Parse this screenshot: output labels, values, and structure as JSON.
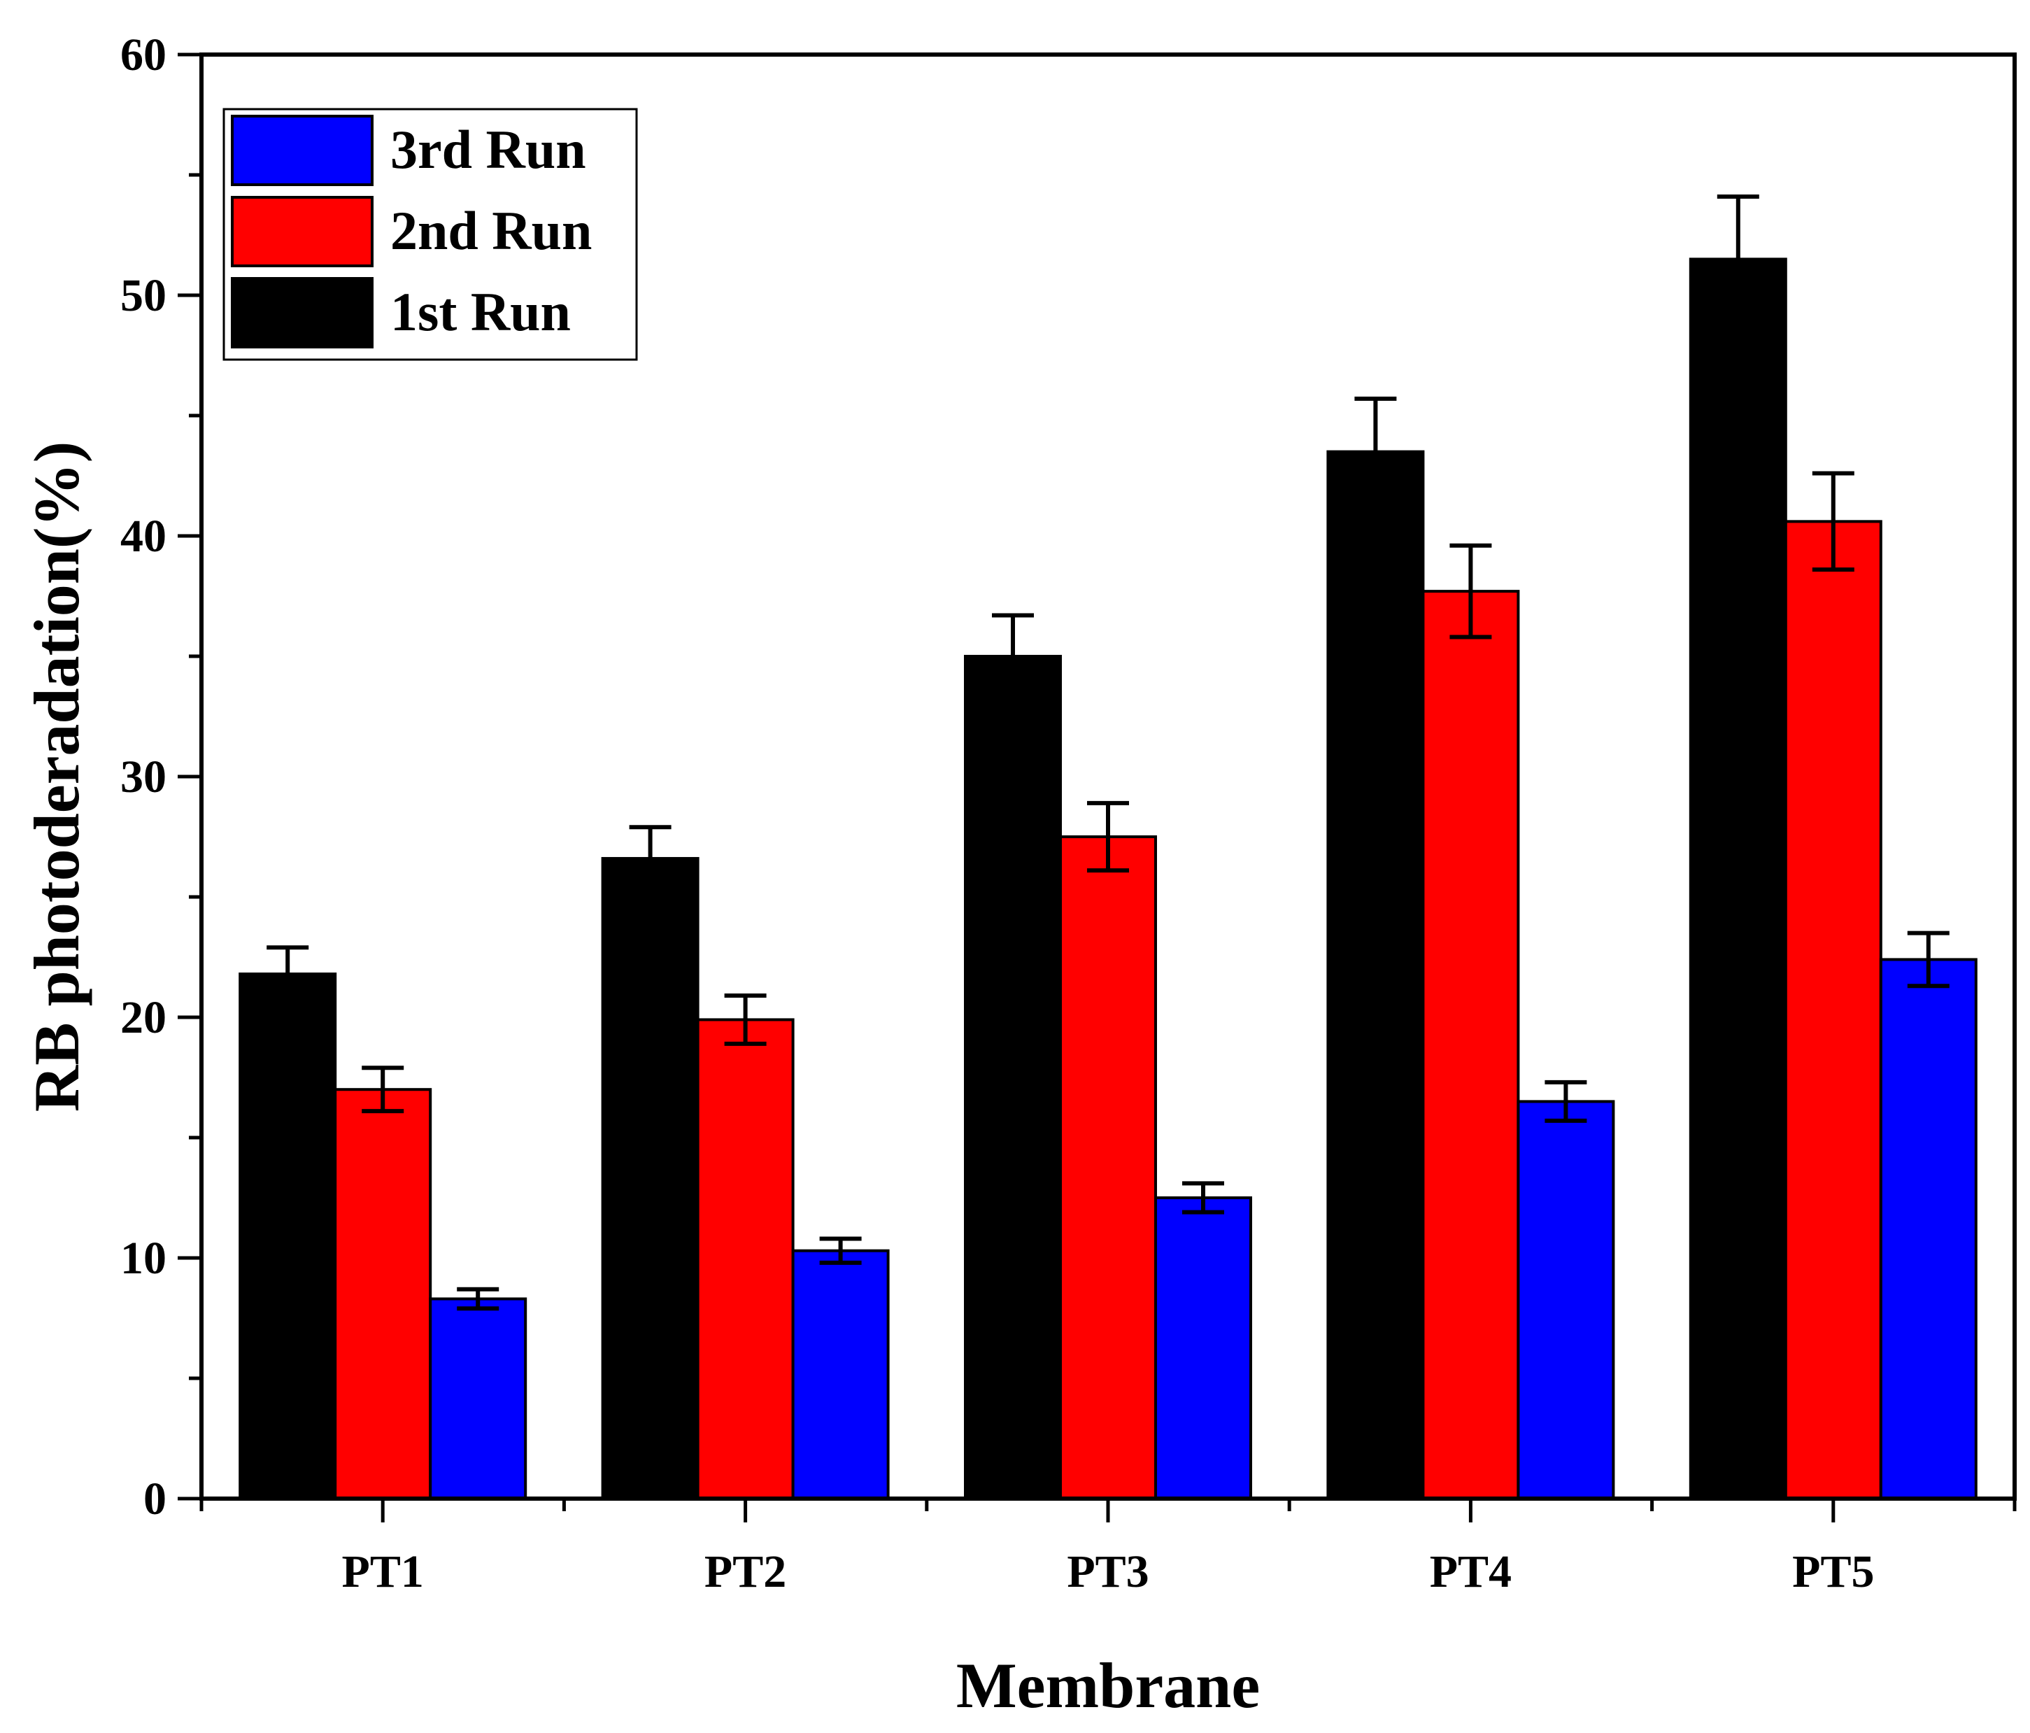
{
  "chart_data": {
    "type": "bar",
    "title": "",
    "xlabel": "Membrane",
    "ylabel": "RB photoderadation(%)",
    "ylim": [
      0,
      60
    ],
    "yticks": [
      0,
      10,
      20,
      30,
      40,
      50,
      60
    ],
    "categories": [
      "PT1",
      "PT2",
      "PT3",
      "PT4",
      "PT5"
    ],
    "series": [
      {
        "name": "1st Run",
        "color": "#000000",
        "values": [
          21.8,
          26.6,
          35.0,
          43.5,
          51.5
        ],
        "errors": [
          1.1,
          1.3,
          1.7,
          2.2,
          2.6
        ]
      },
      {
        "name": "2nd Run",
        "color": "#ff0000",
        "values": [
          17.0,
          19.9,
          27.5,
          37.7,
          40.6
        ],
        "errors": [
          0.9,
          1.0,
          1.4,
          1.9,
          2.0
        ]
      },
      {
        "name": "3rd Run",
        "color": "#0000ff",
        "values": [
          8.3,
          10.3,
          12.5,
          16.5,
          22.4
        ],
        "errors": [
          0.4,
          0.5,
          0.6,
          0.8,
          1.1
        ]
      }
    ],
    "legend": {
      "position": "top-left",
      "order": [
        "3rd Run",
        "2nd Run",
        "1st Run"
      ]
    },
    "grid": false
  }
}
